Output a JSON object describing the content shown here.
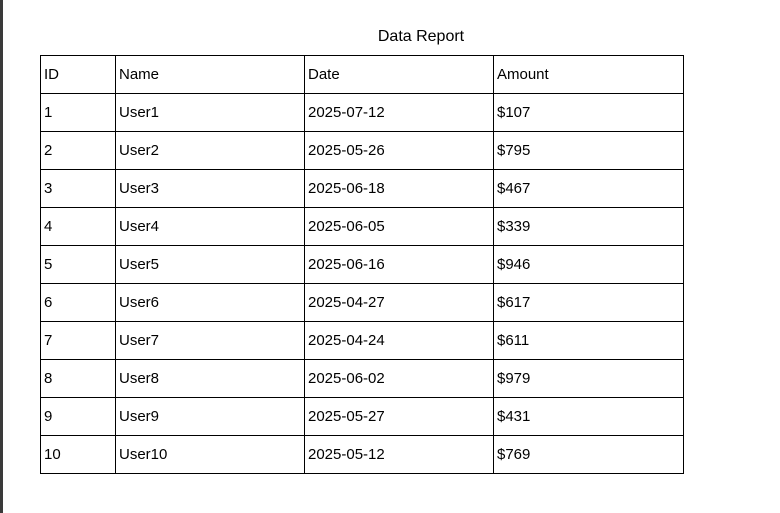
{
  "report": {
    "title": "Data Report",
    "columns": [
      "ID",
      "Name",
      "Date",
      "Amount"
    ],
    "rows": [
      [
        "1",
        "User1",
        "2025-07-12",
        "$107"
      ],
      [
        "2",
        "User2",
        "2025-05-26",
        "$795"
      ],
      [
        "3",
        "User3",
        "2025-06-18",
        "$467"
      ],
      [
        "4",
        "User4",
        "2025-06-05",
        "$339"
      ],
      [
        "5",
        "User5",
        "2025-06-16",
        "$946"
      ],
      [
        "6",
        "User6",
        "2025-04-27",
        "$617"
      ],
      [
        "7",
        "User7",
        "2025-04-24",
        "$611"
      ],
      [
        "8",
        "User8",
        "2025-06-02",
        "$979"
      ],
      [
        "9",
        "User9",
        "2025-05-27",
        "$431"
      ],
      [
        "10",
        "User10",
        "2025-05-12",
        "$769"
      ]
    ]
  }
}
